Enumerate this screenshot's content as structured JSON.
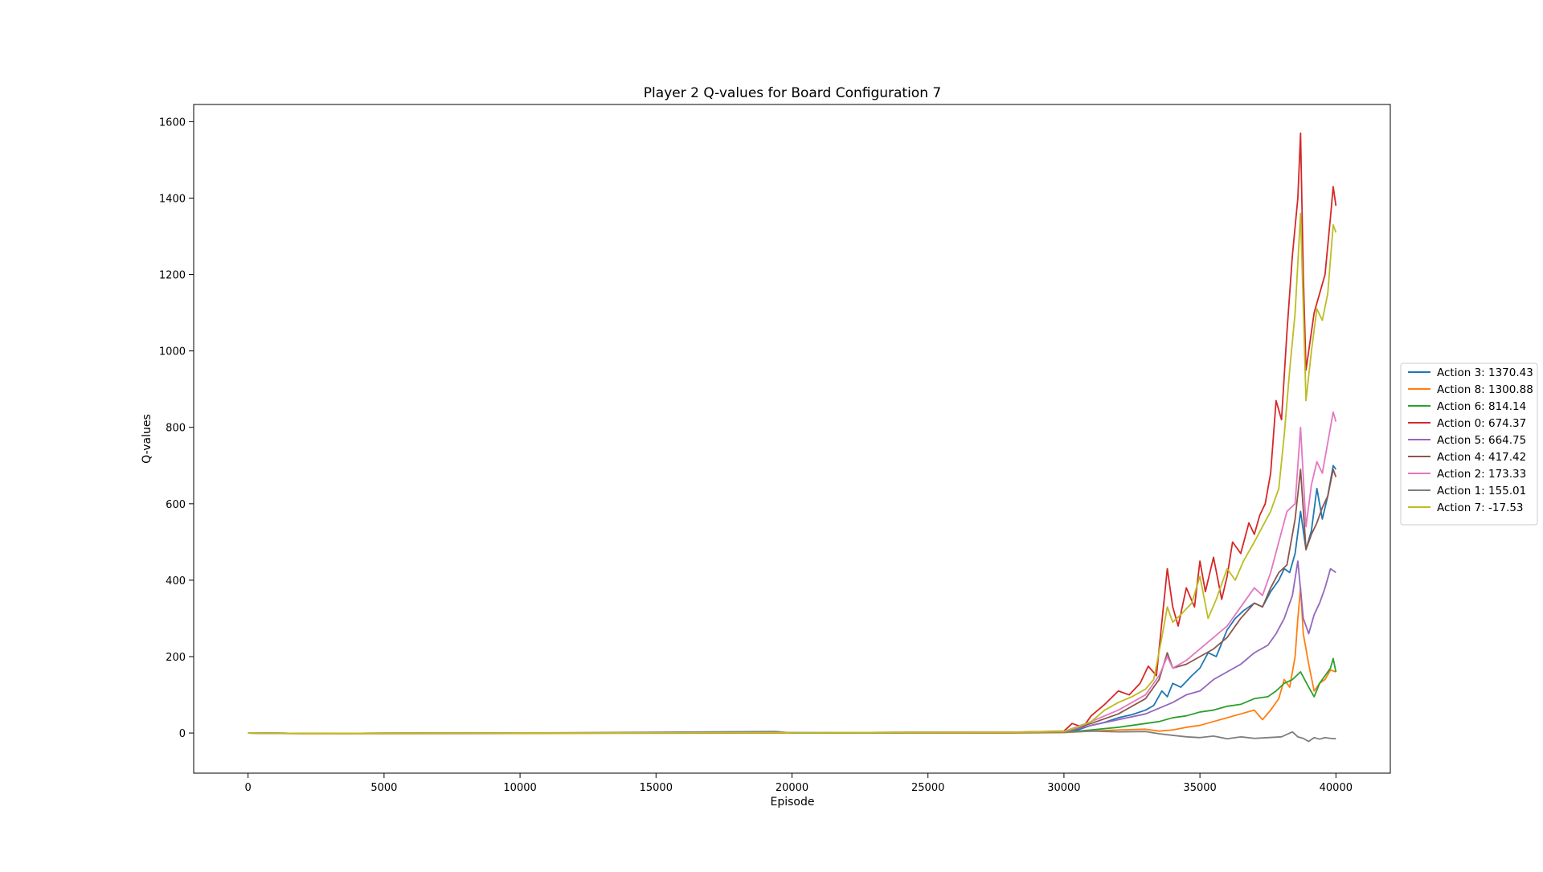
{
  "chart_data": {
    "type": "line",
    "title": "Player 2 Q-values for Board Configuration 7",
    "xlabel": "Episode",
    "ylabel": "Q-values",
    "xlim": [
      -2000,
      42000
    ],
    "ylim": [
      -105,
      1645
    ],
    "xticks": [
      0,
      5000,
      10000,
      15000,
      20000,
      25000,
      30000,
      35000,
      40000
    ],
    "yticks": [
      0,
      200,
      400,
      600,
      800,
      1000,
      1200,
      1400,
      1600
    ],
    "grid": false,
    "legend_placement": "outside-right",
    "series": [
      {
        "name": "Action 3: 1370.43",
        "color": "#1f77b4",
        "x": [
          0,
          2000,
          10000,
          20000,
          28000,
          30000,
          30500,
          31000,
          31500,
          32000,
          32500,
          33000,
          33300,
          33600,
          33800,
          34000,
          34300,
          34700,
          35000,
          35300,
          35600,
          36000,
          36300,
          36600,
          37000,
          37300,
          37600,
          37900,
          38100,
          38300,
          38500,
          38700,
          38900,
          39100,
          39300,
          39500,
          39700,
          39900,
          40000
        ],
        "y": [
          0,
          -1,
          0,
          1,
          2,
          3,
          8,
          20,
          28,
          40,
          48,
          60,
          72,
          110,
          95,
          130,
          120,
          150,
          170,
          210,
          200,
          270,
          300,
          320,
          340,
          330,
          370,
          400,
          430,
          420,
          470,
          580,
          480,
          530,
          640,
          560,
          620,
          700,
          690
        ]
      },
      {
        "name": "Action 8: 1300.88",
        "color": "#ff7f0e",
        "x": [
          0,
          2000,
          10000,
          20000,
          28000,
          30000,
          31000,
          32000,
          33000,
          33500,
          34000,
          34500,
          35000,
          35500,
          36000,
          36500,
          37000,
          37300,
          37600,
          37900,
          38100,
          38300,
          38500,
          38600,
          38700,
          38800,
          39000,
          39200,
          39400,
          39600,
          39800,
          40000
        ],
        "y": [
          0,
          -2,
          -1,
          0,
          0,
          1,
          5,
          8,
          10,
          5,
          8,
          15,
          20,
          30,
          40,
          50,
          60,
          35,
          60,
          90,
          140,
          120,
          200,
          300,
          380,
          260,
          180,
          110,
          130,
          140,
          165,
          160
        ]
      },
      {
        "name": "Action 6: 814.14",
        "color": "#2ca02c",
        "x": [
          0,
          2000,
          10000,
          20000,
          28000,
          30000,
          31000,
          32000,
          33000,
          33500,
          34000,
          34500,
          35000,
          35500,
          36000,
          36500,
          37000,
          37500,
          37800,
          38100,
          38400,
          38700,
          39000,
          39200,
          39400,
          39600,
          39800,
          39900,
          40000
        ],
        "y": [
          0,
          -1,
          0,
          1,
          1,
          2,
          8,
          15,
          25,
          30,
          40,
          45,
          55,
          60,
          70,
          75,
          90,
          95,
          110,
          130,
          140,
          160,
          120,
          95,
          130,
          150,
          170,
          195,
          160
        ]
      },
      {
        "name": "Action 0: 674.37",
        "color": "#d62728",
        "x": [
          0,
          2000,
          10000,
          20000,
          28000,
          30000,
          30300,
          30700,
          31000,
          31500,
          32000,
          32400,
          32800,
          33100,
          33400,
          33600,
          33800,
          34000,
          34200,
          34500,
          34800,
          35000,
          35200,
          35500,
          35800,
          36000,
          36200,
          36500,
          36800,
          37000,
          37200,
          37400,
          37600,
          37800,
          38000,
          38200,
          38400,
          38600,
          38700,
          38800,
          38900,
          39000,
          39200,
          39400,
          39600,
          39800,
          39900,
          40000
        ],
        "y": [
          0,
          -1,
          0,
          1,
          2,
          5,
          25,
          15,
          45,
          75,
          110,
          100,
          130,
          175,
          150,
          290,
          430,
          330,
          280,
          380,
          330,
          450,
          370,
          460,
          350,
          410,
          500,
          470,
          550,
          520,
          570,
          600,
          680,
          870,
          820,
          1050,
          1250,
          1400,
          1570,
          1200,
          950,
          1000,
          1100,
          1150,
          1200,
          1350,
          1430,
          1380
        ]
      },
      {
        "name": "Action 5: 664.75",
        "color": "#9467bd",
        "x": [
          0,
          2000,
          10000,
          20000,
          28000,
          30000,
          31000,
          32000,
          33000,
          33500,
          34000,
          34500,
          35000,
          35500,
          36000,
          36500,
          37000,
          37500,
          37800,
          38100,
          38400,
          38600,
          38800,
          39000,
          39200,
          39400,
          39600,
          39800,
          40000
        ],
        "y": [
          0,
          -1,
          0,
          1,
          2,
          3,
          20,
          35,
          50,
          65,
          80,
          100,
          110,
          140,
          160,
          180,
          210,
          230,
          260,
          300,
          360,
          450,
          300,
          260,
          310,
          340,
          380,
          430,
          420
        ]
      },
      {
        "name": "Action 4: 417.42",
        "color": "#8c564b",
        "x": [
          0,
          2000,
          10000,
          20000,
          28000,
          30000,
          31000,
          32000,
          33000,
          33500,
          33800,
          34000,
          34500,
          35000,
          35500,
          36000,
          36500,
          37000,
          37300,
          37600,
          37900,
          38200,
          38500,
          38700,
          38900,
          39100,
          39300,
          39500,
          39700,
          39900,
          40000
        ],
        "y": [
          0,
          -1,
          0,
          1,
          2,
          4,
          25,
          50,
          90,
          140,
          210,
          170,
          180,
          200,
          220,
          250,
          300,
          340,
          330,
          380,
          420,
          440,
          560,
          690,
          480,
          520,
          550,
          590,
          620,
          690,
          670
        ]
      },
      {
        "name": "Action 2: 173.33",
        "color": "#e377c2",
        "x": [
          0,
          2000,
          10000,
          20000,
          28000,
          30000,
          31000,
          32000,
          33000,
          33500,
          33800,
          34000,
          34500,
          35000,
          35500,
          36000,
          36500,
          37000,
          37300,
          37600,
          37900,
          38200,
          38500,
          38700,
          38900,
          39100,
          39300,
          39500,
          39700,
          39900,
          40000
        ],
        "y": [
          0,
          -1,
          0,
          1,
          2,
          4,
          30,
          60,
          100,
          150,
          200,
          170,
          190,
          220,
          250,
          280,
          330,
          380,
          360,
          420,
          500,
          580,
          600,
          800,
          540,
          650,
          710,
          680,
          760,
          840,
          815
        ]
      },
      {
        "name": "Action 1: 155.01",
        "color": "#7f7f7f",
        "x": [
          0,
          2000,
          10000,
          19400,
          20000,
          28000,
          30000,
          31000,
          32000,
          33000,
          33500,
          34000,
          34500,
          35000,
          35500,
          36000,
          36500,
          37000,
          37500,
          38000,
          38400,
          38600,
          38800,
          39000,
          39200,
          39400,
          39600,
          39800,
          40000
        ],
        "y": [
          0,
          -1,
          0,
          4,
          0,
          1,
          2,
          5,
          3,
          4,
          -2,
          -6,
          -10,
          -12,
          -8,
          -15,
          -10,
          -14,
          -12,
          -10,
          3,
          -10,
          -14,
          -22,
          -12,
          -16,
          -12,
          -14,
          -15
        ]
      },
      {
        "name": "Action 7: -17.53",
        "color": "#bcbd22",
        "x": [
          0,
          2000,
          10000,
          20000,
          28000,
          30000,
          30500,
          31000,
          31500,
          32000,
          32500,
          33000,
          33300,
          33600,
          33800,
          34000,
          34300,
          34700,
          35000,
          35300,
          35600,
          36000,
          36300,
          36600,
          37000,
          37300,
          37600,
          37900,
          38100,
          38300,
          38500,
          38700,
          38900,
          39100,
          39300,
          39500,
          39700,
          39900,
          40000
        ],
        "y": [
          0,
          -1,
          0,
          1,
          2,
          4,
          15,
          30,
          60,
          80,
          95,
          115,
          140,
          250,
          330,
          290,
          310,
          340,
          410,
          300,
          350,
          430,
          400,
          450,
          500,
          540,
          580,
          640,
          780,
          950,
          1100,
          1360,
          870,
          1000,
          1110,
          1080,
          1150,
          1330,
          1310
        ]
      }
    ]
  }
}
